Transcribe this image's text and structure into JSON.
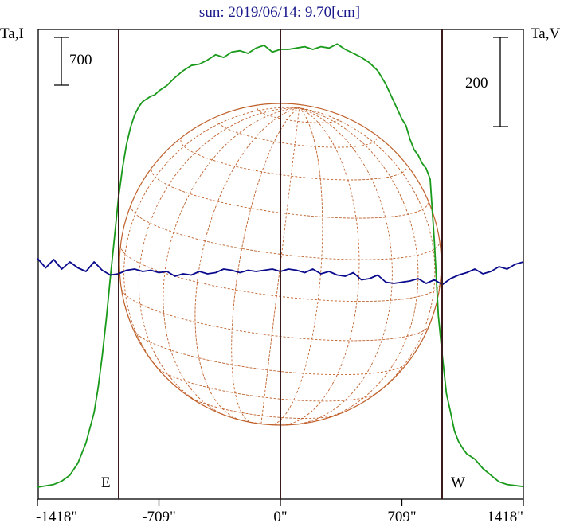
{
  "chart_data": {
    "type": "line",
    "title": "sun: 2019/06/14: 9.70[cm]",
    "y_left_label": "Ta,I",
    "y_right_label": "Ta,V",
    "left_scale_bar_label": "700",
    "right_scale_bar_label": "200",
    "x_ticks": [
      -1418,
      -709,
      0,
      709,
      1418
    ],
    "x_tick_labels": [
      "-1418\"",
      "-709\"",
      "0\"",
      "709\"",
      "1418\""
    ],
    "xlim": [
      -1418,
      1418
    ],
    "limb_marks": [
      -945,
      945
    ],
    "limb_labels": [
      "E",
      "W"
    ],
    "colors": {
      "intensity": "#1a9a1a",
      "polarization": "#0a0a8c",
      "grid": "#c0602a",
      "frame": "#000000",
      "markers": "#3a1a1a",
      "title": "#1a1a8c"
    },
    "series": [
      {
        "name": "I",
        "scale": "left",
        "x": [
          -1418,
          -1323,
          -1276,
          -1229,
          -1182,
          -1135,
          -1087,
          -1064,
          -1040,
          -1016,
          -993,
          -969,
          -945,
          -922,
          -898,
          -874,
          -851,
          -827,
          -804,
          -780,
          -756,
          -733,
          -709,
          -662,
          -615,
          -568,
          -520,
          -473,
          -426,
          -378,
          -331,
          -284,
          -236,
          -189,
          -142,
          -95,
          -47,
          0,
          47,
          95,
          142,
          189,
          236,
          284,
          331,
          378,
          426,
          473,
          520,
          568,
          615,
          662,
          709,
          733,
          756,
          780,
          804,
          827,
          851,
          874,
          898,
          922,
          945,
          969,
          993,
          1016,
          1040,
          1064,
          1087,
          1135,
          1182,
          1229,
          1276,
          1323,
          1418
        ],
        "values": [
          0,
          20,
          45,
          90,
          180,
          330,
          560,
          740,
          980,
          1260,
          1560,
          1860,
          2160,
          2380,
          2560,
          2690,
          2780,
          2840,
          2880,
          2900,
          2920,
          2930,
          2960,
          3000,
          3060,
          3110,
          3150,
          3160,
          3190,
          3230,
          3210,
          3250,
          3260,
          3240,
          3280,
          3300,
          3250,
          3270,
          3270,
          3280,
          3290,
          3270,
          3290,
          3280,
          3310,
          3270,
          3240,
          3210,
          3170,
          3110,
          3010,
          2880,
          2750,
          2700,
          2600,
          2520,
          2480,
          2420,
          2380,
          2300,
          1840,
          1280,
          980,
          700,
          560,
          420,
          340,
          290,
          250,
          210,
          140,
          90,
          40,
          20,
          5
        ]
      },
      {
        "name": "V",
        "scale": "right",
        "x": [
          -1418,
          -1370,
          -1323,
          -1276,
          -1229,
          -1182,
          -1135,
          -1087,
          -1040,
          -993,
          -945,
          -898,
          -851,
          -804,
          -756,
          -709,
          -662,
          -615,
          -568,
          -520,
          -473,
          -426,
          -378,
          -331,
          -284,
          -236,
          -189,
          -142,
          -95,
          -47,
          0,
          47,
          95,
          142,
          189,
          236,
          284,
          331,
          378,
          426,
          473,
          520,
          568,
          615,
          662,
          709,
          756,
          804,
          851,
          898,
          945,
          993,
          1040,
          1087,
          1135,
          1182,
          1229,
          1276,
          1323,
          1370,
          1418
        ],
        "values": [
          5,
          -3,
          4,
          -4,
          2,
          -3,
          -6,
          2,
          -5,
          -9,
          -8,
          -5,
          -4,
          -6,
          -5,
          -7,
          -6,
          -10,
          -8,
          -9,
          -6,
          -8,
          -7,
          -4,
          -5,
          -7,
          -5,
          -6,
          -5,
          -4,
          -6,
          -4,
          -5,
          -7,
          -4,
          -8,
          -6,
          -9,
          -10,
          -7,
          -13,
          -12,
          -9,
          -15,
          -16,
          -15,
          -14,
          -12,
          -16,
          -13,
          -17,
          -12,
          -9,
          -7,
          -4,
          -8,
          -6,
          -2,
          -4,
          0,
          2
        ]
      }
    ]
  }
}
